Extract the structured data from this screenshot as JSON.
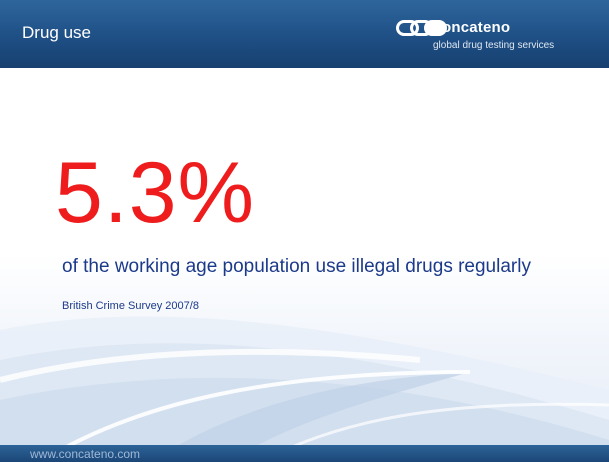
{
  "header": {
    "title": "Drug use",
    "logo_name": "oncateno",
    "logo_tagline": "global drug testing services"
  },
  "main": {
    "stat": "5.3%",
    "description": "of the working age population use illegal drugs regularly",
    "source": "British Crime Survey 2007/8"
  },
  "footer": {
    "url": "www.concateno.com"
  },
  "colors": {
    "header_blue": "#1e4f85",
    "stat_red": "#ee1c1c",
    "text_navy": "#1c3a8a"
  },
  "icons": {
    "logo": "chain-links-logo-icon"
  }
}
